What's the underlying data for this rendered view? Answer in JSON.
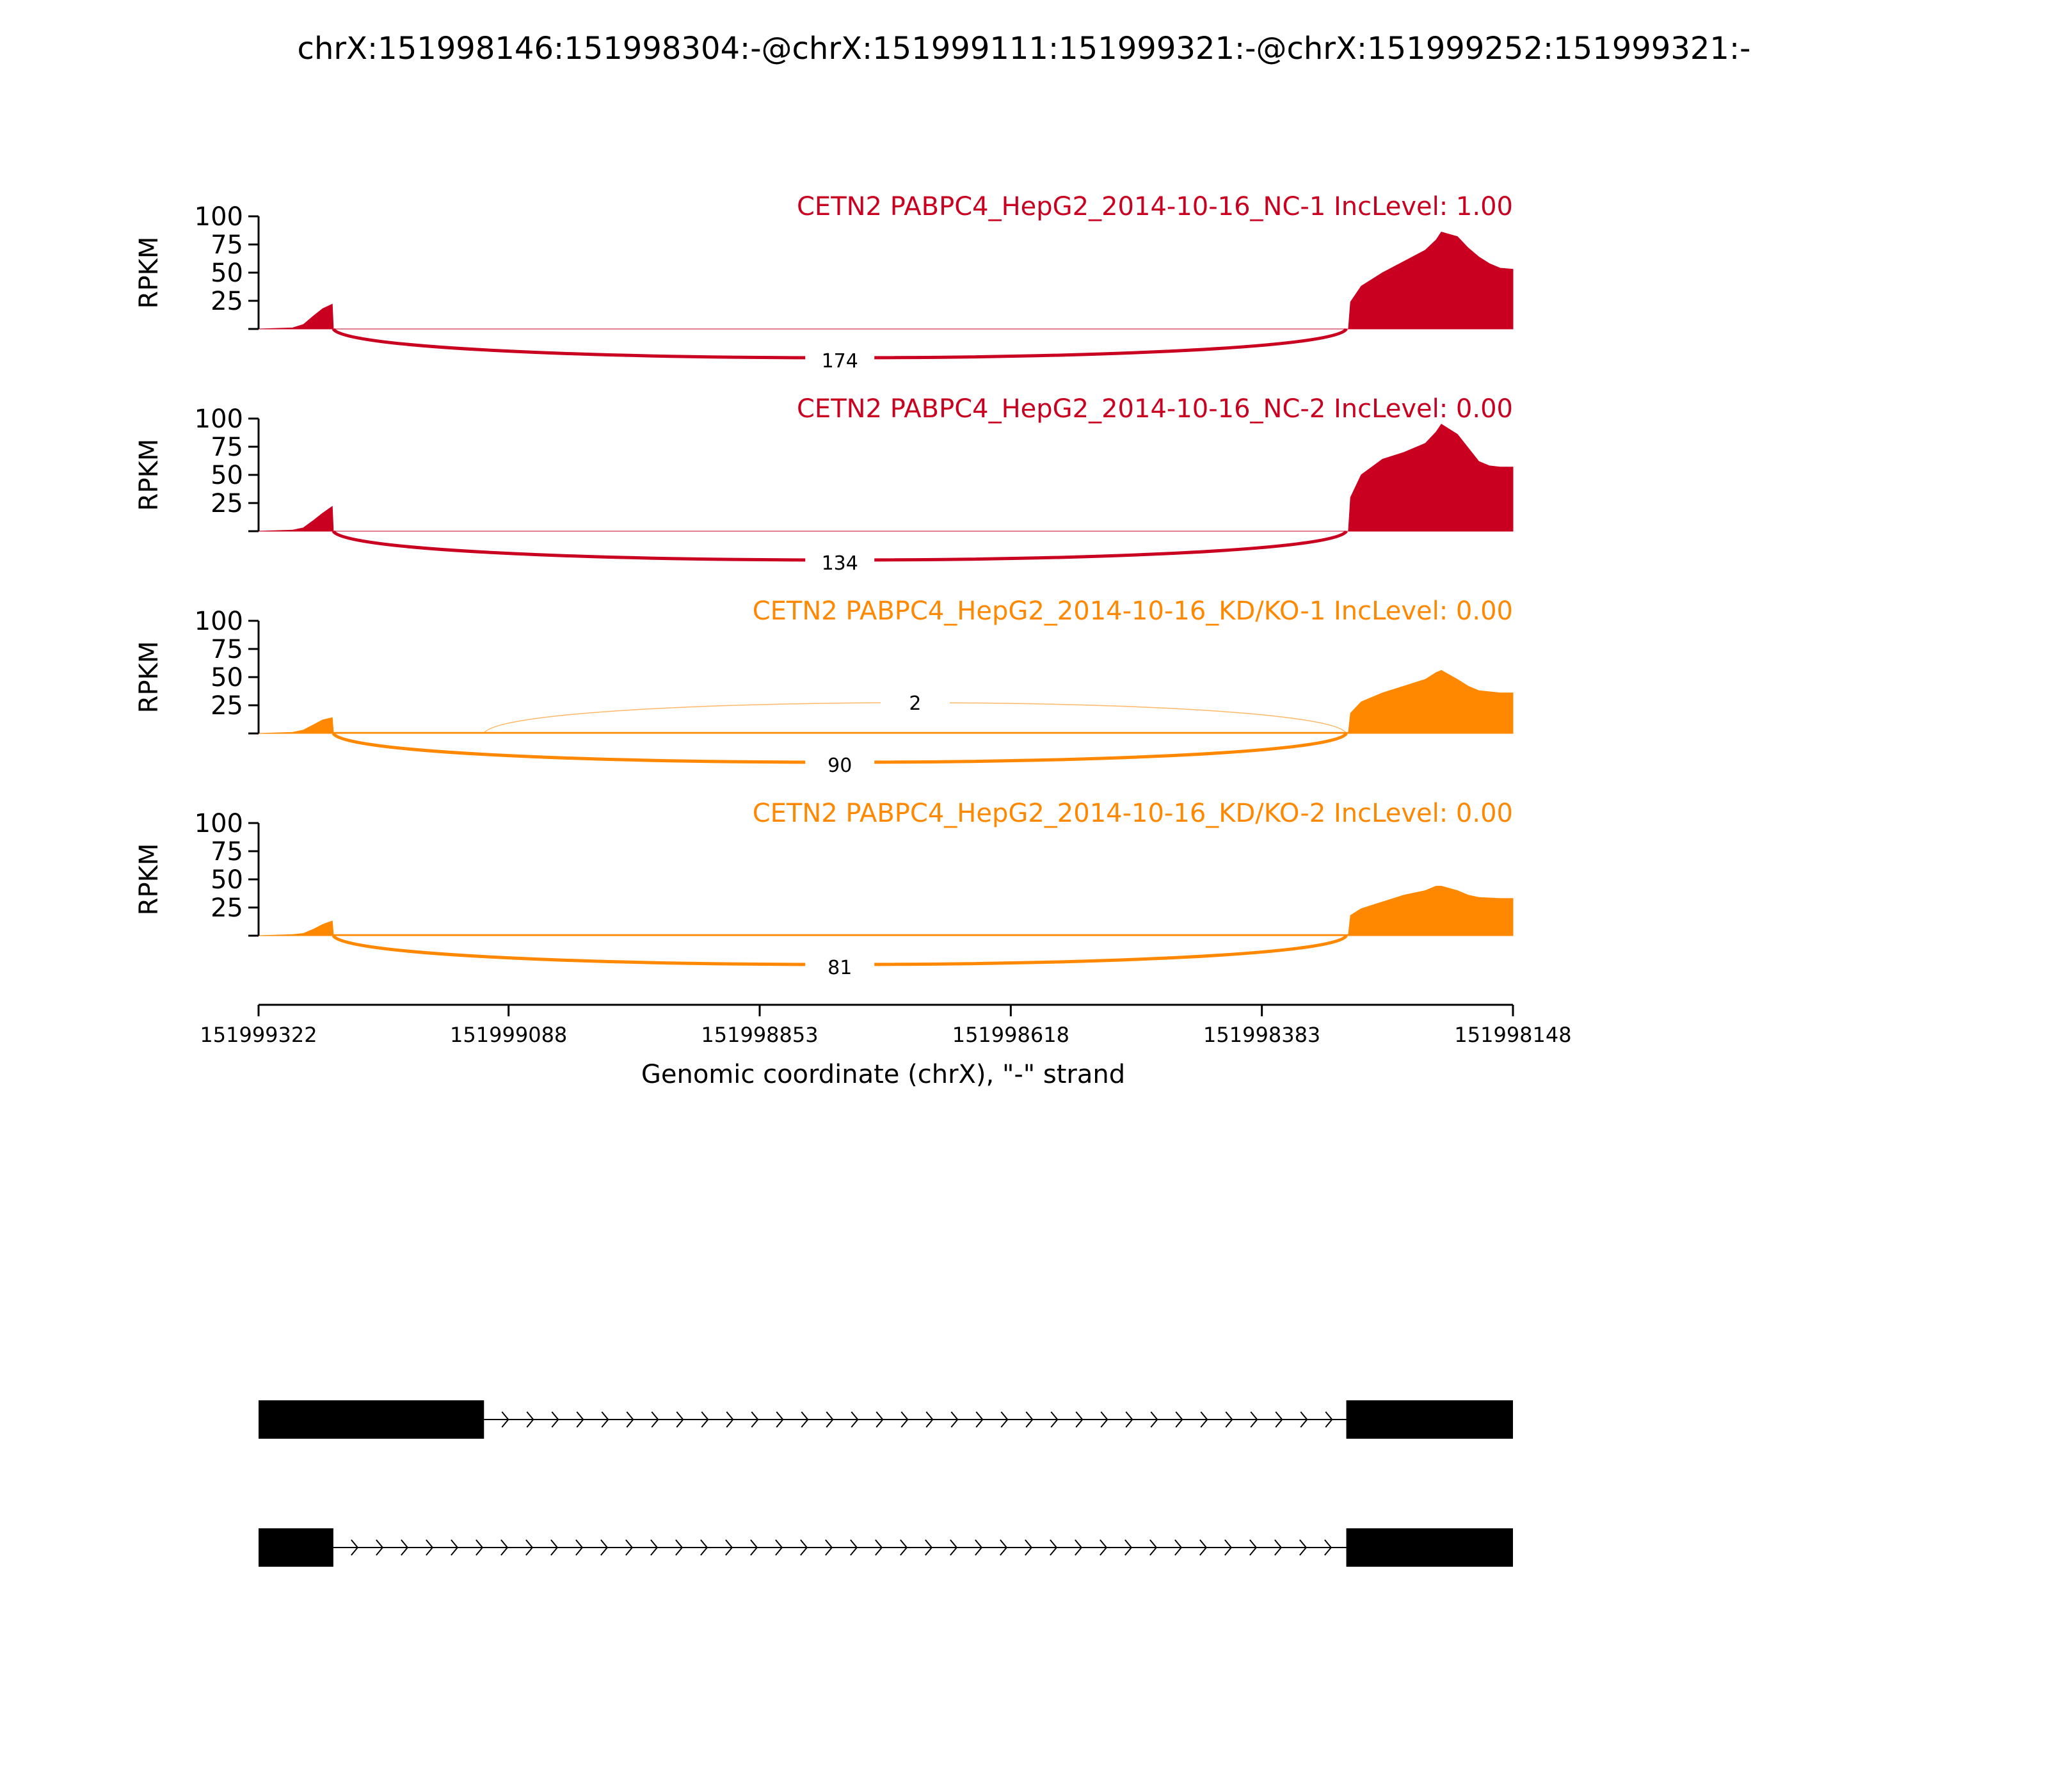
{
  "figure_title": "chrX:151998146:151998304:-@chrX:151999111:151999321:-@chrX:151999252:151999321:-",
  "chart_data": {
    "type": "area",
    "title": "chrX:151998146:151998304:-@chrX:151999111:151999321:-@chrX:151999252:151999321:-",
    "ylabel": "RPKM",
    "xlabel": "Genomic coordinate (chrX), \"-\" strand",
    "ylim": [
      0,
      100
    ],
    "yticks": [
      25,
      50,
      75,
      100
    ],
    "xlim": [
      151999322,
      151998148
    ],
    "xticks": [
      "151999322",
      "151999088",
      "151998853",
      "151998618",
      "151998383",
      "151998148"
    ],
    "x_orientation": "reversed",
    "colors": {
      "nc": "#ca0020",
      "kd": "#ff8800",
      "gene": "#000000"
    },
    "tracks": [
      {
        "name": "CETN2 PABPC4_HepG2_2014-10-16_NC-1 IncLevel: 1.00",
        "color": "#ca0020",
        "coverage": [
          [
            151999322,
            0
          ],
          [
            151999290,
            1
          ],
          [
            151999280,
            4
          ],
          [
            151999270,
            12
          ],
          [
            151999262,
            18
          ],
          [
            151999253,
            22
          ],
          [
            151999252,
            0
          ],
          [
            151998302,
            0
          ],
          [
            151998300,
            24
          ],
          [
            151998290,
            38
          ],
          [
            151998270,
            50
          ],
          [
            151998250,
            60
          ],
          [
            151998230,
            70
          ],
          [
            151998220,
            79
          ],
          [
            151998215,
            86
          ],
          [
            151998200,
            82
          ],
          [
            151998190,
            72
          ],
          [
            151998180,
            64
          ],
          [
            151998170,
            58
          ],
          [
            151998160,
            54
          ],
          [
            151998148,
            53
          ],
          [
            151998148,
            0
          ]
        ],
        "junctions": [
          {
            "from": 151999252,
            "to": 151998304,
            "count": "174",
            "side": "below"
          }
        ]
      },
      {
        "name": "CETN2 PABPC4_HepG2_2014-10-16_NC-2 IncLevel: 0.00",
        "color": "#ca0020",
        "coverage": [
          [
            151999322,
            0
          ],
          [
            151999290,
            1
          ],
          [
            151999280,
            3
          ],
          [
            151999270,
            10
          ],
          [
            151999262,
            16
          ],
          [
            151999253,
            22
          ],
          [
            151999252,
            0
          ],
          [
            151998302,
            0
          ],
          [
            151998300,
            30
          ],
          [
            151998290,
            50
          ],
          [
            151998270,
            64
          ],
          [
            151998250,
            70
          ],
          [
            151998230,
            78
          ],
          [
            151998220,
            88
          ],
          [
            151998215,
            95
          ],
          [
            151998200,
            86
          ],
          [
            151998190,
            74
          ],
          [
            151998180,
            62
          ],
          [
            151998170,
            58
          ],
          [
            151998160,
            57
          ],
          [
            151998148,
            57
          ],
          [
            151998148,
            0
          ]
        ],
        "junctions": [
          {
            "from": 151999252,
            "to": 151998304,
            "count": "134",
            "side": "below"
          }
        ]
      },
      {
        "name": "CETN2 PABPC4_HepG2_2014-10-16_KD/KO-1 IncLevel: 0.00",
        "color": "#ff8800",
        "coverage": [
          [
            151999322,
            0
          ],
          [
            151999290,
            1
          ],
          [
            151999280,
            3
          ],
          [
            151999270,
            8
          ],
          [
            151999262,
            12
          ],
          [
            151999253,
            14
          ],
          [
            151999252,
            1
          ],
          [
            151999111,
            1
          ],
          [
            151998302,
            1
          ],
          [
            151998300,
            18
          ],
          [
            151998290,
            28
          ],
          [
            151998270,
            36
          ],
          [
            151998250,
            42
          ],
          [
            151998230,
            48
          ],
          [
            151998220,
            54
          ],
          [
            151998215,
            56
          ],
          [
            151998200,
            48
          ],
          [
            151998190,
            42
          ],
          [
            151998180,
            38
          ],
          [
            151998160,
            36
          ],
          [
            151998148,
            36
          ],
          [
            151998148,
            0
          ]
        ],
        "junctions": [
          {
            "from": 151999111,
            "to": 151998304,
            "count": "2",
            "side": "above"
          },
          {
            "from": 151999252,
            "to": 151998304,
            "count": "90",
            "side": "below"
          }
        ]
      },
      {
        "name": "CETN2 PABPC4_HepG2_2014-10-16_KD/KO-2 IncLevel: 0.00",
        "color": "#ff8800",
        "coverage": [
          [
            151999322,
            0
          ],
          [
            151999290,
            1
          ],
          [
            151999280,
            2
          ],
          [
            151999270,
            6
          ],
          [
            151999262,
            10
          ],
          [
            151999253,
            13
          ],
          [
            151999252,
            1
          ],
          [
            151998302,
            1
          ],
          [
            151998300,
            18
          ],
          [
            151998290,
            24
          ],
          [
            151998270,
            30
          ],
          [
            151998250,
            36
          ],
          [
            151998230,
            40
          ],
          [
            151998220,
            44
          ],
          [
            151998215,
            44
          ],
          [
            151998200,
            40
          ],
          [
            151998190,
            36
          ],
          [
            151998180,
            34
          ],
          [
            151998160,
            33
          ],
          [
            151998148,
            33
          ],
          [
            151998148,
            0
          ]
        ],
        "junctions": [
          {
            "from": 151999252,
            "to": 151998304,
            "count": "81",
            "side": "below"
          }
        ]
      }
    ],
    "gene_models": [
      {
        "exons": [
          [
            151999322,
            151999111
          ],
          [
            151998304,
            151998148
          ]
        ]
      },
      {
        "exons": [
          [
            151999322,
            151999252
          ],
          [
            151998304,
            151998148
          ]
        ]
      }
    ]
  }
}
